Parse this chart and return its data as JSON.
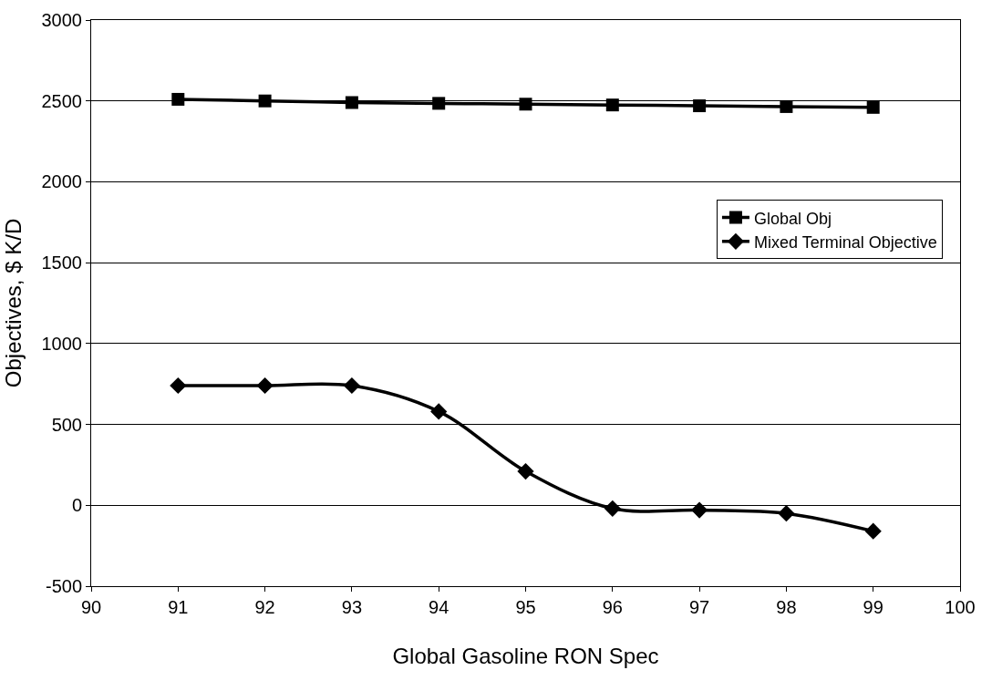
{
  "chart_data": {
    "type": "line",
    "xlabel": "Global Gasoline RON Spec",
    "ylabel": "Objectives, $ K/D",
    "x": [
      91,
      92,
      93,
      94,
      95,
      96,
      97,
      98,
      99
    ],
    "series": [
      {
        "name": "Global Obj",
        "color": "#000000",
        "marker": "square",
        "values": [
          2510,
          2500,
          2490,
          2485,
          2480,
          2475,
          2470,
          2465,
          2460
        ]
      },
      {
        "name": "Mixed Terminal Objective",
        "color": "#000000",
        "marker": "diamond",
        "values": [
          740,
          740,
          740,
          580,
          210,
          -20,
          -30,
          -50,
          -160
        ]
      }
    ],
    "xlim": [
      90,
      100
    ],
    "xticks": [
      90,
      91,
      92,
      93,
      94,
      95,
      96,
      97,
      98,
      99,
      100
    ],
    "ylim": [
      -500,
      3000
    ],
    "yticks": [
      -500,
      0,
      500,
      1000,
      1500,
      2000,
      2500,
      3000
    ],
    "grid": "y",
    "legend": "right",
    "line_style": "solid"
  }
}
